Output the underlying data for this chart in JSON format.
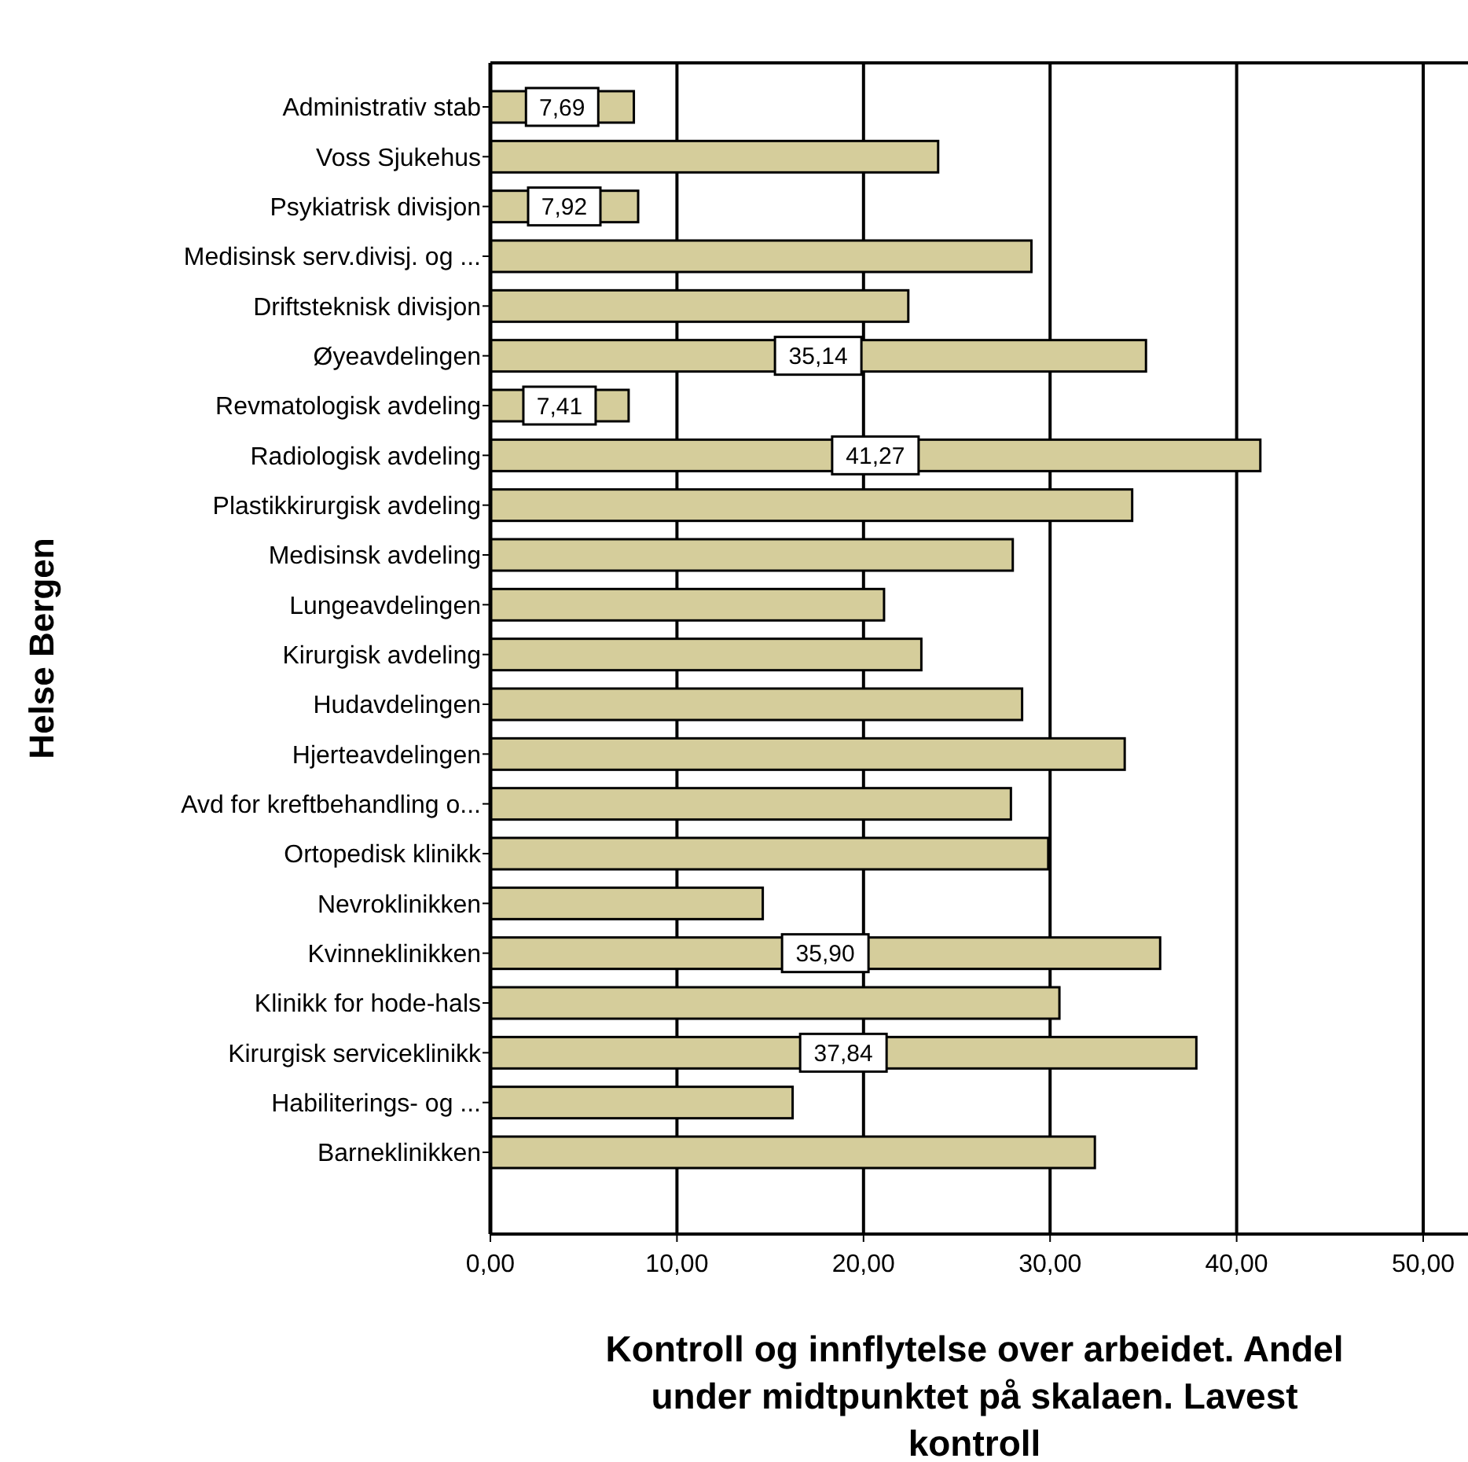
{
  "chart_data": {
    "type": "bar",
    "orientation": "horizontal",
    "ylabel": "Helse Bergen",
    "xlabel": "Kontroll og innflytelse over arbeidet. Andel under midtpunktet på skalaen. Lavest kontroll",
    "categories": [
      "Administrativ stab",
      "Voss Sjukehus",
      "Psykiatrisk divisjon",
      "Medisinsk serv.divisj. og ...",
      "Driftsteknisk divisjon",
      "Øyeavdelingen",
      "Revmatologisk avdeling",
      "Radiologisk avdeling",
      "Plastikkirurgisk avdeling",
      "Medisinsk avdeling",
      "Lungeavdelingen",
      "Kirurgisk avdeling",
      "Hudavdelingen",
      "Hjerteavdelingen",
      "Avd for kreftbehandling o...",
      "Ortopedisk klinikk",
      "Nevroklinikken",
      "Kvinneklinikken",
      "Klinikk for hode-hals",
      "Kirurgisk serviceklinikk",
      "Habiliterings- og ...",
      "Barneklinikken"
    ],
    "values": [
      7.69,
      24.0,
      7.92,
      29.0,
      22.4,
      35.14,
      7.41,
      41.27,
      34.4,
      28.0,
      21.1,
      23.1,
      28.5,
      34.0,
      27.9,
      29.9,
      14.6,
      35.9,
      30.5,
      37.84,
      16.2,
      32.4
    ],
    "value_labels": [
      "7,69",
      null,
      "7,92",
      null,
      null,
      "35,14",
      "7,41",
      "41,27",
      null,
      null,
      null,
      null,
      null,
      null,
      null,
      null,
      null,
      "35,90",
      null,
      "37,84",
      null,
      null
    ],
    "color": "#d5cd9b",
    "xlim": [
      0,
      52.4
    ],
    "xticks": [
      {
        "value": 0,
        "label": "0,00"
      },
      {
        "value": 10,
        "label": "10,00"
      },
      {
        "value": 20,
        "label": "20,00"
      },
      {
        "value": 30,
        "label": "30,00"
      },
      {
        "value": 40,
        "label": "40,00"
      },
      {
        "value": 50,
        "label": "50,00"
      }
    ],
    "grid": "x"
  }
}
